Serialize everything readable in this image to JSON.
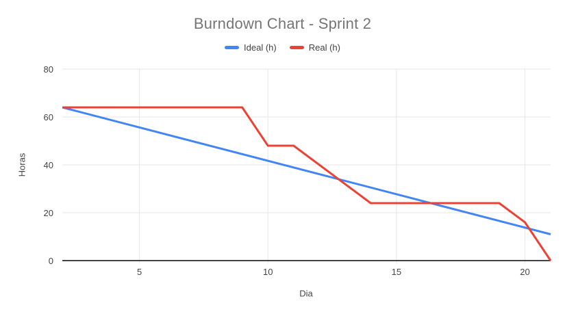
{
  "title": "Burndown Chart - Sprint 2",
  "legend": [
    {
      "label": "Ideal (h)",
      "color": "#4285F4"
    },
    {
      "label": "Real (h)",
      "color": "#EA4335"
    }
  ],
  "axes": {
    "x_label": "Dia",
    "y_label": "Horas"
  },
  "colors": {
    "series_blue": "#4285F4",
    "series_red": "#EA4335",
    "gridline": "#E6E6E6",
    "axis_line": "#424242",
    "tick_label": "#444444",
    "title_text": "#757575",
    "legend_text": "#424242",
    "background": "#FFFFFF"
  },
  "chart_data": {
    "type": "line",
    "title": "Burndown Chart - Sprint 2",
    "xlabel": "Dia",
    "ylabel": "Horas",
    "xlim": [
      2,
      21
    ],
    "ylim": [
      0,
      80
    ],
    "x_ticks": [
      5,
      10,
      15,
      20
    ],
    "y_ticks": [
      0,
      20,
      40,
      60,
      80
    ],
    "grid": true,
    "legend_position": "top",
    "series": [
      {
        "name": "Ideal (h)",
        "color": "#4285F4",
        "points": [
          [
            2,
            64
          ],
          [
            21,
            11
          ]
        ]
      },
      {
        "name": "Real (h)",
        "color": "#EA4335",
        "points": [
          [
            2,
            64
          ],
          [
            9,
            64
          ],
          [
            10,
            48
          ],
          [
            11,
            48
          ],
          [
            14,
            24
          ],
          [
            19,
            24
          ],
          [
            20,
            16
          ],
          [
            21,
            0
          ]
        ]
      }
    ]
  }
}
